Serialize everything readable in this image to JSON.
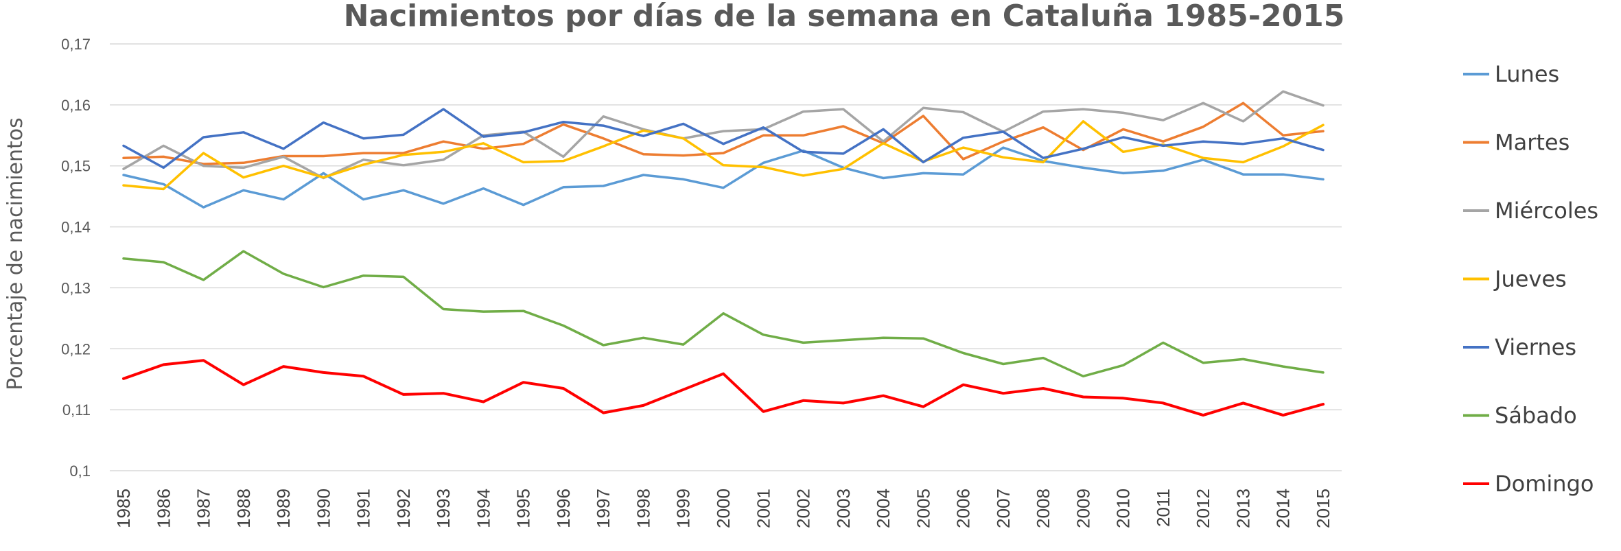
{
  "chart_data": {
    "type": "line",
    "title": "Nacimientos por días de la semana en Cataluña 1985-2015",
    "xlabel": "",
    "ylabel": "Porcentaje de nacimientos",
    "ylim": [
      0.1,
      0.17
    ],
    "yticks": [
      "0,1",
      "0,11",
      "0,12",
      "0,13",
      "0,14",
      "0,15",
      "0,16",
      "0,17"
    ],
    "grid": true,
    "legend": "right",
    "categories": [
      "1985",
      "1986",
      "1987",
      "1988",
      "1989",
      "1990",
      "1991",
      "1992",
      "1993",
      "1994",
      "1995",
      "1996",
      "1997",
      "1998",
      "1999",
      "2000",
      "2001",
      "2002",
      "2003",
      "2004",
      "2005",
      "2006",
      "2007",
      "2008",
      "2009",
      "2010",
      "2011",
      "2012",
      "2013",
      "2014",
      "2015"
    ],
    "series": [
      {
        "name": "Lunes",
        "color": "#5B9BD5",
        "values": [
          0.1485,
          0.147,
          0.1432,
          0.146,
          0.1445,
          0.1488,
          0.1445,
          0.146,
          0.1438,
          0.1463,
          0.1436,
          0.1465,
          0.1467,
          0.1485,
          0.1478,
          0.1464,
          0.1505,
          0.1525,
          0.1497,
          0.148,
          0.1488,
          0.1486,
          0.153,
          0.1508,
          0.1497,
          0.1488,
          0.1492,
          0.151,
          0.1486,
          0.1486,
          0.1478
        ]
      },
      {
        "name": "Martes",
        "color": "#ED7D31",
        "values": [
          0.1513,
          0.1515,
          0.1503,
          0.1505,
          0.1516,
          0.1516,
          0.1521,
          0.1521,
          0.154,
          0.1528,
          0.1536,
          0.1568,
          0.1545,
          0.1519,
          0.1517,
          0.1521,
          0.155,
          0.155,
          0.1565,
          0.1537,
          0.1582,
          0.1511,
          0.154,
          0.1563,
          0.1526,
          0.156,
          0.154,
          0.1564,
          0.1603,
          0.155,
          0.1557
        ]
      },
      {
        "name": "Miércoles",
        "color": "#A5A5A5",
        "values": [
          0.1495,
          0.1533,
          0.15,
          0.1497,
          0.1515,
          0.148,
          0.151,
          0.1501,
          0.151,
          0.155,
          0.1556,
          0.1515,
          0.1581,
          0.156,
          0.1545,
          0.1557,
          0.156,
          0.1589,
          0.1593,
          0.154,
          0.1595,
          0.1588,
          0.1556,
          0.1589,
          0.1593,
          0.1587,
          0.1575,
          0.1603,
          0.1573,
          0.1622,
          0.1599
        ]
      },
      {
        "name": "Jueves",
        "color": "#FFC000",
        "values": [
          0.1468,
          0.1462,
          0.1521,
          0.1481,
          0.15,
          0.1481,
          0.1502,
          0.1518,
          0.1523,
          0.1537,
          0.1506,
          0.1508,
          0.1532,
          0.1558,
          0.1545,
          0.1501,
          0.1498,
          0.1484,
          0.1495,
          0.1537,
          0.1507,
          0.153,
          0.1514,
          0.1506,
          0.1573,
          0.1523,
          0.1535,
          0.1513,
          0.1506,
          0.1532,
          0.1567
        ]
      },
      {
        "name": "Viernes",
        "color": "#4472C4",
        "values": [
          0.1533,
          0.1497,
          0.1547,
          0.1555,
          0.1528,
          0.1571,
          0.1545,
          0.1551,
          0.1593,
          0.1548,
          0.1555,
          0.1572,
          0.1566,
          0.1549,
          0.1569,
          0.1536,
          0.1563,
          0.1523,
          0.152,
          0.156,
          0.1506,
          0.1546,
          0.1556,
          0.1513,
          0.1528,
          0.1547,
          0.1533,
          0.154,
          0.1536,
          0.1545,
          0.1526
        ]
      },
      {
        "name": "Sábado",
        "color": "#70AD47",
        "values": [
          0.1348,
          0.1342,
          0.1313,
          0.136,
          0.1323,
          0.1301,
          0.132,
          0.1318,
          0.1265,
          0.1261,
          0.1262,
          0.1238,
          0.1206,
          0.1218,
          0.1207,
          0.1258,
          0.1223,
          0.121,
          0.1214,
          0.1218,
          0.1217,
          0.1193,
          0.1175,
          0.1185,
          0.1155,
          0.1173,
          0.121,
          0.1177,
          0.1183,
          0.1171,
          0.1161
        ]
      },
      {
        "name": "Domingo",
        "color": "#FF0000",
        "values": [
          0.1151,
          0.1174,
          0.1181,
          0.1141,
          0.1171,
          0.1161,
          0.1155,
          0.1125,
          0.1127,
          0.1113,
          0.1145,
          0.1135,
          0.1095,
          0.1107,
          0.1133,
          0.1159,
          0.1097,
          0.1115,
          0.1111,
          0.1123,
          0.1105,
          0.1141,
          0.1127,
          0.1135,
          0.1121,
          0.1119,
          0.1111,
          0.1091,
          0.1111,
          0.1091,
          0.1109
        ]
      }
    ]
  }
}
